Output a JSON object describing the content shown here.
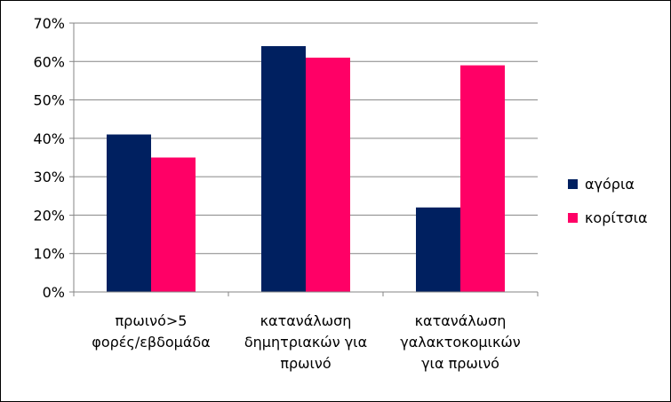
{
  "chart_data": {
    "type": "bar",
    "categories": [
      [
        "πρωινό>5",
        "φορές/εβδομάδα"
      ],
      [
        "κατανάλωση",
        "δημητριακών για",
        "πρωινό"
      ],
      [
        "κατανάλωση",
        "γαλακτοκομικών",
        "για πρωινό"
      ]
    ],
    "series": [
      {
        "name": "αγόρια",
        "values": [
          41,
          64,
          22
        ],
        "color": "#002060"
      },
      {
        "name": "κορίτσια",
        "values": [
          35,
          61,
          59
        ],
        "color": "#FF0066"
      }
    ],
    "y_ticks": [
      "0%",
      "10%",
      "20%",
      "30%",
      "40%",
      "50%",
      "60%",
      "70%"
    ],
    "ylim": [
      0,
      70
    ],
    "y_unit": "%",
    "grid": true,
    "legend_position": "right"
  }
}
